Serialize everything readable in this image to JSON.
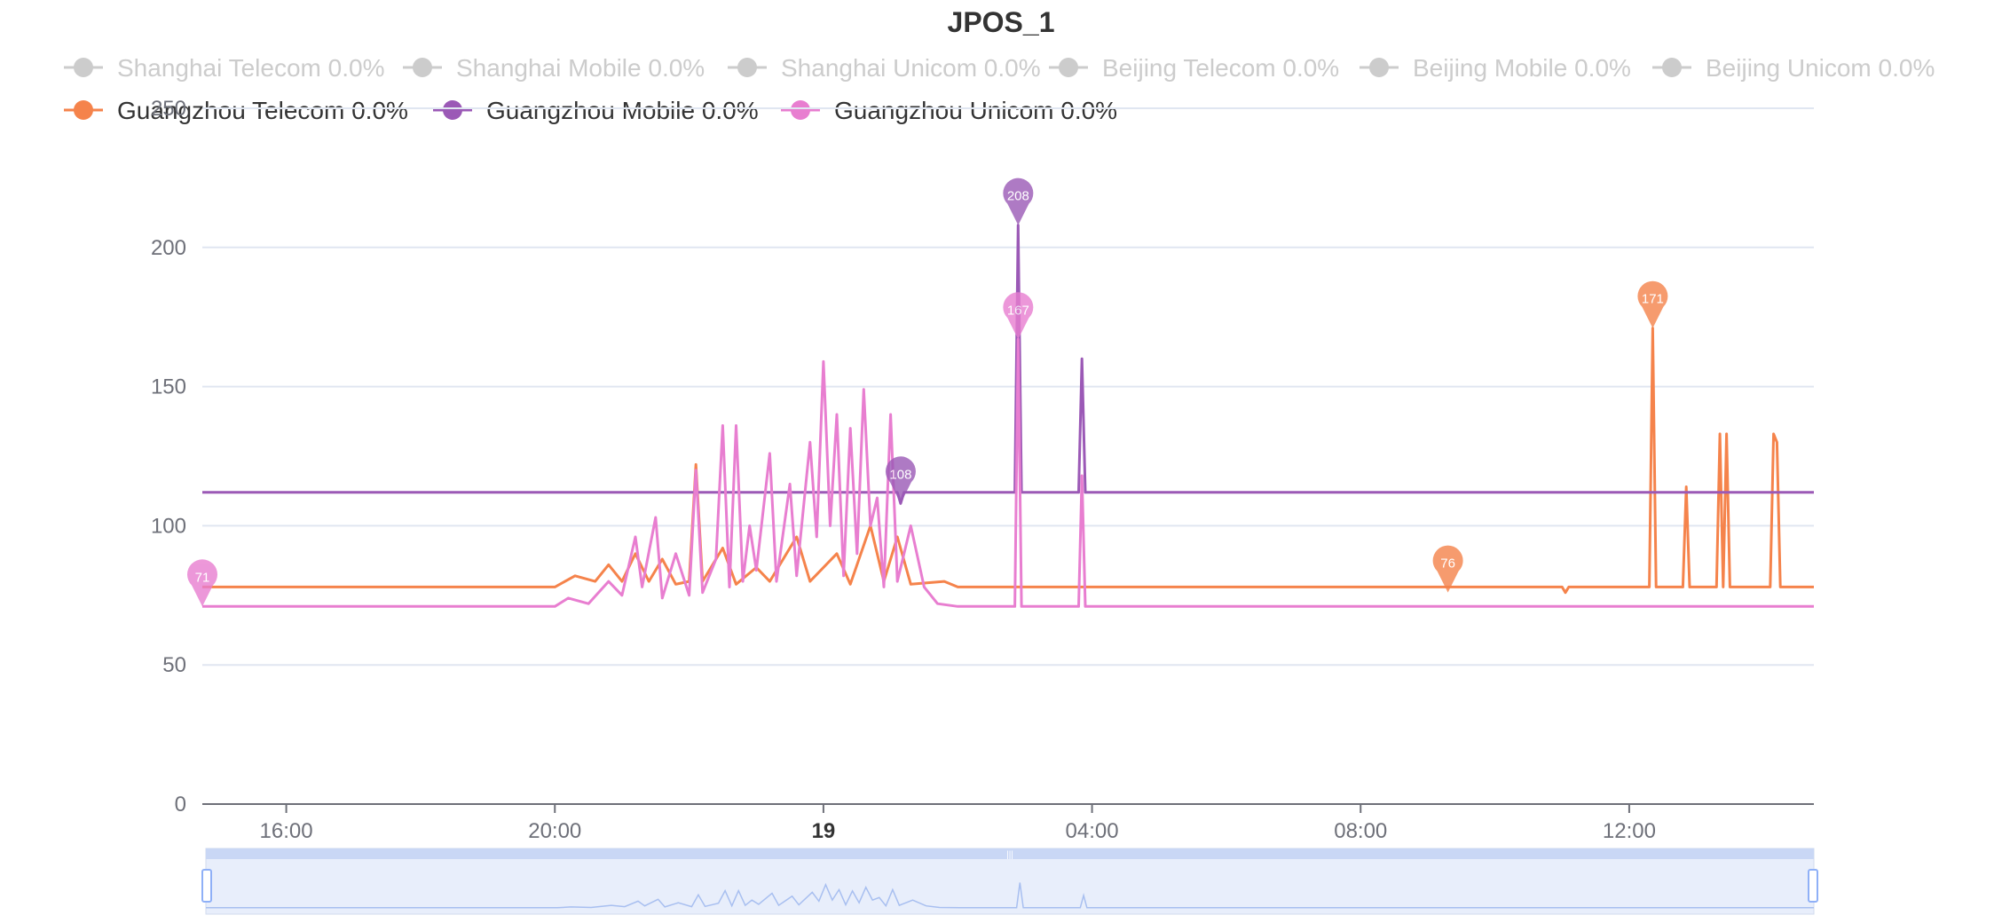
{
  "chart_data": {
    "type": "line",
    "title": "JPOS_1",
    "xlabel": "",
    "ylabel": "",
    "ylim": [
      0,
      250
    ],
    "yticks": [
      0,
      50,
      100,
      150,
      200,
      250
    ],
    "x_unit": "hours",
    "xlim": [
      14.75,
      38.75
    ],
    "xticks": [
      {
        "x": 16,
        "label": "16:00"
      },
      {
        "x": 20,
        "label": "20:00"
      },
      {
        "x": 24,
        "label": "19"
      },
      {
        "x": 28,
        "label": "04:00"
      },
      {
        "x": 32,
        "label": "08:00"
      },
      {
        "x": 36,
        "label": "12:00"
      }
    ],
    "grid": true,
    "legend_position": "top",
    "series": [
      {
        "name": "Shanghai Telecom 0.0%",
        "color": "#cccccc",
        "active": false,
        "points": []
      },
      {
        "name": "Shanghai Mobile 0.0%",
        "color": "#cccccc",
        "active": false,
        "points": []
      },
      {
        "name": "Shanghai Unicom 0.0%",
        "color": "#cccccc",
        "active": false,
        "points": []
      },
      {
        "name": "Beijing Telecom 0.0%",
        "color": "#cccccc",
        "active": false,
        "points": []
      },
      {
        "name": "Beijing Mobile 0.0%",
        "color": "#cccccc",
        "active": false,
        "points": []
      },
      {
        "name": "Beijing Unicom 0.0%",
        "color": "#cccccc",
        "active": false,
        "points": []
      },
      {
        "name": "Guangzhou Telecom 0.0%",
        "color": "#f5834b",
        "active": true,
        "points": [
          [
            14.75,
            78
          ],
          [
            20.0,
            78
          ],
          [
            20.3,
            82
          ],
          [
            20.6,
            80
          ],
          [
            20.8,
            86
          ],
          [
            21.0,
            80
          ],
          [
            21.2,
            90
          ],
          [
            21.4,
            80
          ],
          [
            21.6,
            88
          ],
          [
            21.8,
            79
          ],
          [
            22.0,
            80
          ],
          [
            22.1,
            122
          ],
          [
            22.2,
            80
          ],
          [
            22.5,
            92
          ],
          [
            22.7,
            79
          ],
          [
            23.0,
            85
          ],
          [
            23.2,
            80
          ],
          [
            23.6,
            96
          ],
          [
            23.8,
            80
          ],
          [
            24.2,
            90
          ],
          [
            24.4,
            79
          ],
          [
            24.7,
            100
          ],
          [
            24.9,
            80
          ],
          [
            25.1,
            96
          ],
          [
            25.3,
            79
          ],
          [
            25.8,
            80
          ],
          [
            26.0,
            78
          ],
          [
            35.0,
            78
          ],
          [
            35.05,
            76
          ],
          [
            35.1,
            78
          ],
          [
            36.3,
            78
          ],
          [
            36.35,
            171
          ],
          [
            36.4,
            78
          ],
          [
            36.8,
            78
          ],
          [
            36.85,
            114
          ],
          [
            36.9,
            78
          ],
          [
            37.3,
            78
          ],
          [
            37.35,
            133
          ],
          [
            37.4,
            78
          ],
          [
            37.45,
            133
          ],
          [
            37.5,
            78
          ],
          [
            38.1,
            78
          ],
          [
            38.15,
            133
          ],
          [
            38.2,
            130
          ],
          [
            38.25,
            78
          ],
          [
            38.75,
            78
          ]
        ],
        "markers": [
          {
            "x": 36.35,
            "y": 171,
            "label": "171"
          },
          {
            "x": 33.3,
            "y": 76,
            "label": "76"
          }
        ]
      },
      {
        "name": "Guangzhou Mobile 0.0%",
        "color": "#9b59b6",
        "active": true,
        "points": [
          [
            14.75,
            112
          ],
          [
            25.1,
            112
          ],
          [
            25.15,
            108
          ],
          [
            25.2,
            112
          ],
          [
            26.85,
            112
          ],
          [
            26.9,
            208
          ],
          [
            26.95,
            112
          ],
          [
            27.8,
            112
          ],
          [
            27.85,
            160
          ],
          [
            27.9,
            112
          ],
          [
            38.75,
            112
          ]
        ],
        "markers": [
          {
            "x": 26.9,
            "y": 208,
            "label": "208"
          },
          {
            "x": 25.15,
            "y": 108,
            "label": "108"
          }
        ]
      },
      {
        "name": "Guangzhou Unicom 0.0%",
        "color": "#e87ed0",
        "active": true,
        "points": [
          [
            14.75,
            71
          ],
          [
            20.0,
            71
          ],
          [
            20.2,
            74
          ],
          [
            20.5,
            72
          ],
          [
            20.8,
            80
          ],
          [
            21.0,
            75
          ],
          [
            21.2,
            96
          ],
          [
            21.3,
            78
          ],
          [
            21.5,
            103
          ],
          [
            21.6,
            74
          ],
          [
            21.8,
            90
          ],
          [
            22.0,
            75
          ],
          [
            22.1,
            120
          ],
          [
            22.2,
            76
          ],
          [
            22.4,
            88
          ],
          [
            22.5,
            136
          ],
          [
            22.6,
            78
          ],
          [
            22.7,
            136
          ],
          [
            22.8,
            80
          ],
          [
            22.9,
            100
          ],
          [
            23.0,
            84
          ],
          [
            23.2,
            126
          ],
          [
            23.3,
            80
          ],
          [
            23.5,
            115
          ],
          [
            23.6,
            82
          ],
          [
            23.8,
            130
          ],
          [
            23.9,
            96
          ],
          [
            24.0,
            159
          ],
          [
            24.1,
            100
          ],
          [
            24.2,
            140
          ],
          [
            24.3,
            82
          ],
          [
            24.4,
            135
          ],
          [
            24.5,
            90
          ],
          [
            24.6,
            149
          ],
          [
            24.7,
            100
          ],
          [
            24.8,
            110
          ],
          [
            24.9,
            78
          ],
          [
            25.0,
            140
          ],
          [
            25.1,
            80
          ],
          [
            25.3,
            100
          ],
          [
            25.5,
            78
          ],
          [
            25.7,
            72
          ],
          [
            26.0,
            71
          ],
          [
            26.85,
            71
          ],
          [
            26.9,
            167
          ],
          [
            26.95,
            71
          ],
          [
            27.8,
            71
          ],
          [
            27.85,
            118
          ],
          [
            27.9,
            71
          ],
          [
            38.75,
            71
          ]
        ],
        "markers": [
          {
            "x": 26.9,
            "y": 167,
            "label": "167"
          },
          {
            "x": 14.75,
            "y": 71,
            "label": "71"
          }
        ]
      }
    ]
  }
}
